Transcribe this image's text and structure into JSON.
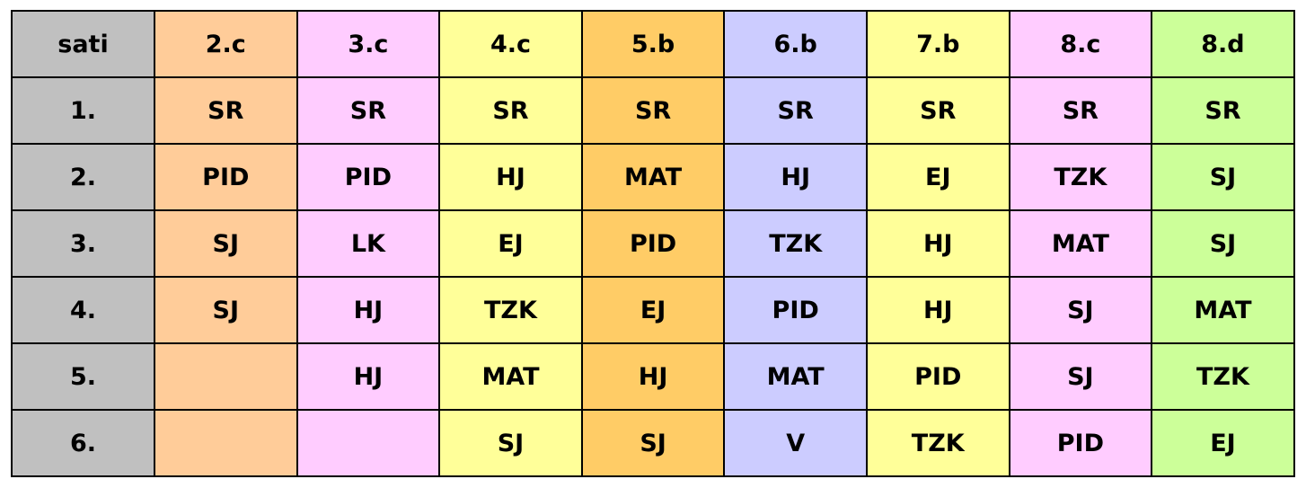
{
  "table": {
    "header_label": "sati",
    "columns": [
      "2.c",
      "3.c",
      "4.c",
      "5.b",
      "6.b",
      "7.b",
      "8.c",
      "8.d"
    ],
    "rows": [
      {
        "period": "1.",
        "cells": [
          "SR",
          "SR",
          "SR",
          "SR",
          "SR",
          "SR",
          "SR",
          "SR"
        ]
      },
      {
        "period": "2.",
        "cells": [
          "PID",
          "PID",
          "HJ",
          "MAT",
          "HJ",
          "EJ",
          "TZK",
          "SJ"
        ]
      },
      {
        "period": "3.",
        "cells": [
          "SJ",
          "LK",
          "EJ",
          "PID",
          "TZK",
          "HJ",
          "MAT",
          "SJ"
        ]
      },
      {
        "period": "4.",
        "cells": [
          "SJ",
          "HJ",
          "TZK",
          "EJ",
          "PID",
          "HJ",
          "SJ",
          "MAT"
        ]
      },
      {
        "period": "5.",
        "cells": [
          "",
          "HJ",
          "MAT",
          "HJ",
          "MAT",
          "PID",
          "SJ",
          "TZK"
        ]
      },
      {
        "period": "6.",
        "cells": [
          "",
          "",
          "SJ",
          "SJ",
          "V",
          "TZK",
          "PID",
          "EJ"
        ]
      }
    ]
  },
  "colors": {
    "sati": "#c0c0c0",
    "2.c": "#ffcc99",
    "3.c": "#ffccff",
    "4.c": "#ffff99",
    "5.b": "#ffcc66",
    "6.b": "#ccccff",
    "7.b": "#ffff99",
    "8.c": "#ffccff",
    "8.d": "#ccff99"
  }
}
